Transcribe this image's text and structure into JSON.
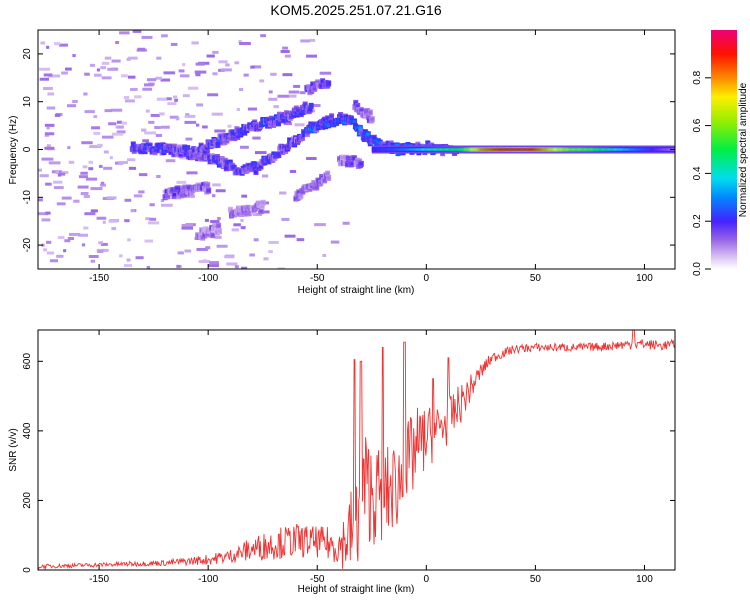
{
  "title": "KOM5.2025.251.07.21.G16",
  "chart_data": [
    {
      "id": "spectrogram",
      "type": "heatmap",
      "xlabel": "Height of straight line (km)",
      "ylabel": "Frequency (Hz)",
      "xlim": [
        -178,
        114
      ],
      "ylim": [
        -25,
        25
      ],
      "xticks": [
        -150,
        -100,
        -50,
        0,
        50,
        100
      ],
      "yticks": [
        -20,
        -10,
        0,
        10,
        20
      ],
      "colorbar": {
        "label": "Normalized spectral amplitude",
        "range": [
          0,
          1
        ],
        "ticks": [
          0.0,
          0.2,
          0.4,
          0.6,
          0.8
        ]
      },
      "traces": [
        {
          "x": [
            -135,
            -125,
            -112,
            -102,
            -93,
            -85,
            -78,
            -72,
            -65,
            -58,
            -52
          ],
          "y": [
            0.3,
            0.2,
            -0.4,
            -1.2,
            -2.8,
            -4.5,
            -3.8,
            -2.0,
            0.5,
            2.5,
            4.5
          ],
          "amp": 0.16
        },
        {
          "x": [
            -108,
            -100,
            -92,
            -85,
            -78,
            -70,
            -64,
            -58,
            -53
          ],
          "y": [
            -1.2,
            0.8,
            2.5,
            3.8,
            5.0,
            6.0,
            7.0,
            8.2,
            9.0
          ],
          "amp": 0.17
        },
        {
          "x": [
            -55,
            -48,
            -40,
            -35,
            -30,
            -25,
            -20,
            -15,
            -10,
            -5,
            0,
            5,
            10,
            15
          ],
          "y": [
            4.0,
            5.5,
            6.5,
            6.0,
            3.5,
            1.8,
            0.8,
            0.2,
            0.0,
            0.2,
            0.4,
            0.2,
            0.0,
            0.1
          ],
          "amp": 0.2
        },
        {
          "x": [
            -33,
            -29,
            -25
          ],
          "y": [
            9.5,
            8.0,
            6.5
          ],
          "amp": 0.12
        },
        {
          "x": [
            -60,
            -55,
            -50,
            -45
          ],
          "y": [
            -9.5,
            -8.5,
            -7.0,
            -5.8
          ],
          "amp": 0.12
        },
        {
          "x": [
            -120,
            -112,
            -106,
            -100
          ],
          "y": [
            -9.5,
            -8.8,
            -8.5,
            -8.0
          ],
          "amp": 0.13
        },
        {
          "x": [
            -55,
            -50,
            -45
          ],
          "y": [
            12.5,
            13.2,
            13.8
          ],
          "amp": 0.15
        },
        {
          "x": [
            -105,
            -99,
            -95
          ],
          "y": [
            -18.0,
            -17.2,
            -16.5
          ],
          "amp": 0.1
        },
        {
          "x": [
            -90,
            -83,
            -75
          ],
          "y": [
            -13.2,
            -12.6,
            -12.0
          ],
          "amp": 0.1
        },
        {
          "x": [
            -40,
            -35,
            -30
          ],
          "y": [
            -2.0,
            -2.5,
            -3.0
          ],
          "amp": 0.12
        }
      ],
      "carrier": {
        "x": [
          -25,
          -15,
          -5,
          5,
          15,
          25,
          35,
          45,
          55,
          65,
          75,
          85,
          95,
          105,
          113
        ],
        "amp": [
          0.2,
          0.25,
          0.35,
          0.45,
          0.5,
          0.82,
          0.92,
          0.96,
          0.78,
          0.6,
          0.55,
          0.42,
          0.3,
          0.18,
          0.1
        ]
      }
    },
    {
      "id": "snr",
      "type": "line",
      "xlabel": "Height of straight line (km)",
      "ylabel": "SNR (v/v)",
      "xlim": [
        -178,
        114
      ],
      "ylim": [
        0,
        690
      ],
      "xticks": [
        -150,
        -100,
        -50,
        0,
        50,
        100
      ],
      "yticks": [
        0,
        200,
        400,
        600
      ],
      "color": "#ee3333",
      "series": [
        {
          "name": "SNR",
          "x": [
            -178,
            -150,
            -120,
            -100,
            -90,
            -80,
            -70,
            -60,
            -50,
            -40,
            -35,
            -32,
            -30,
            -25,
            -20,
            -15,
            -10,
            -5,
            0,
            5,
            10,
            15,
            20,
            25,
            30,
            40,
            50,
            60,
            70,
            80,
            90,
            100,
            108,
            114
          ],
          "y": [
            10,
            15,
            20,
            30,
            40,
            60,
            75,
            85,
            80,
            70,
            100,
            150,
            260,
            220,
            210,
            240,
            270,
            350,
            380,
            400,
            430,
            470,
            520,
            570,
            610,
            635,
            640,
            640,
            640,
            642,
            648,
            650,
            645,
            650
          ],
          "noise": [
            6,
            6,
            8,
            15,
            20,
            35,
            45,
            50,
            45,
            55,
            120,
            200,
            170,
            150,
            140,
            130,
            140,
            120,
            90,
            80,
            70,
            60,
            40,
            25,
            15,
            12,
            12,
            12,
            12,
            12,
            14,
            15,
            14,
            12
          ],
          "peaks": [
            {
              "x": -33,
              "y": 605
            },
            {
              "x": -30,
              "y": 600
            },
            {
              "x": -20,
              "y": 640
            },
            {
              "x": -10,
              "y": 655
            },
            {
              "x": 3,
              "y": 550
            },
            {
              "x": 10,
              "y": 610
            },
            {
              "x": 95,
              "y": 690
            }
          ]
        }
      ]
    }
  ]
}
